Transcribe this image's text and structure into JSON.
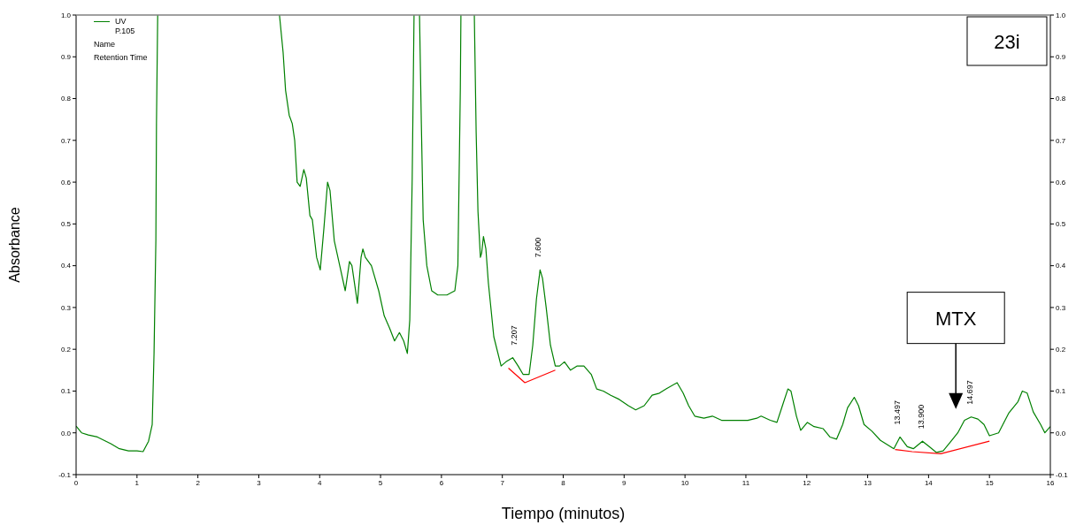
{
  "chart_data": {
    "type": "line",
    "xlabel": "Tiempo (minutos)",
    "ylabel": "Absorbance",
    "xlim": [
      0,
      16
    ],
    "xticks": [
      0,
      1,
      2,
      3,
      4,
      5,
      6,
      7,
      8,
      9,
      10,
      11,
      12,
      13,
      14,
      15,
      16
    ],
    "ylim": [
      -0.1,
      1
    ],
    "yticks": [
      {
        "value": -0.1,
        "label": "-0.1"
      },
      {
        "value": 0,
        "label": "0.0"
      },
      0.1,
      0.2,
      0.3,
      0.4,
      0.5,
      0.6,
      0.7,
      0.8,
      0.9,
      {
        "value": 1,
        "label": "1.0"
      }
    ],
    "y2lim": [
      -0.1,
      1
    ],
    "y2ticks": [
      {
        "value": -0.1,
        "label": "-0.1"
      },
      {
        "value": 0,
        "label": "0.0"
      },
      0.1,
      0.2,
      0.3,
      0.4,
      0.5,
      0.6,
      0.7,
      0.8,
      0.9,
      {
        "value": 1,
        "label": "1.0"
      }
    ],
    "legend": "top left",
    "grid": false,
    "marker": "none",
    "line_style": "solid",
    "series": [
      {
        "name": "UV P.105",
        "color": "#008000",
        "x": [
          0,
          0.09,
          0.2,
          0.35,
          0.57,
          0.71,
          0.86,
          1.0,
          1.1,
          1.19,
          1.25,
          1.28,
          1.31,
          1.32,
          1.34,
          2.3,
          3.34,
          3.4,
          3.44,
          3.5,
          3.55,
          3.59,
          3.63,
          3.68,
          3.74,
          3.78,
          3.84,
          3.88,
          3.95,
          4.01,
          4.07,
          4.13,
          4.17,
          4.24,
          4.33,
          4.42,
          4.49,
          4.53,
          4.62,
          4.68,
          4.71,
          4.75,
          4.85,
          4.97,
          5.06,
          5.15,
          5.23,
          5.31,
          5.38,
          5.44,
          5.48,
          5.52,
          5.55,
          5.6,
          5.64,
          5.67,
          5.7,
          5.76,
          5.84,
          5.94,
          6.09,
          6.22,
          6.27,
          6.31,
          6.32,
          6.43,
          6.54,
          6.57,
          6.6,
          6.64,
          6.66,
          6.69,
          6.73,
          6.77,
          6.86,
          6.98,
          7.06,
          7.17,
          7.26,
          7.34,
          7.44,
          7.5,
          7.56,
          7.62,
          7.66,
          7.72,
          7.79,
          7.87,
          7.94,
          8.02,
          8.12,
          8.23,
          8.34,
          8.46,
          8.55,
          8.66,
          8.78,
          8.92,
          9.07,
          9.19,
          9.33,
          9.46,
          9.58,
          9.69,
          9.87,
          9.97,
          10.06,
          10.16,
          10.31,
          10.45,
          10.6,
          10.74,
          10.89,
          11.03,
          11.18,
          11.25,
          11.4,
          11.51,
          11.6,
          11.69,
          11.74,
          11.83,
          11.9,
          12.01,
          12.12,
          12.27,
          12.38,
          12.49,
          12.59,
          12.67,
          12.78,
          12.85,
          12.94,
          13.07,
          13.21,
          13.43,
          13.53,
          13.65,
          13.75,
          13.9,
          14.01,
          14.13,
          14.24,
          14.37,
          14.48,
          14.59,
          14.7,
          14.81,
          14.91,
          15.0,
          15.15,
          15.32,
          15.47,
          15.54,
          15.62,
          15.72,
          15.84,
          15.91,
          16.0
        ],
        "values": [
          0.016,
          0.0,
          -0.005,
          -0.01,
          -0.026,
          -0.038,
          -0.043,
          -0.043,
          -0.045,
          -0.02,
          0.02,
          0.19,
          0.46,
          0.74,
          1.0,
          null,
          1.0,
          0.91,
          0.82,
          0.76,
          0.74,
          0.7,
          0.6,
          0.59,
          0.63,
          0.61,
          0.52,
          0.51,
          0.42,
          0.39,
          0.49,
          0.6,
          0.58,
          0.46,
          0.4,
          0.34,
          0.41,
          0.4,
          0.31,
          0.42,
          0.44,
          0.42,
          0.4,
          0.34,
          0.28,
          0.25,
          0.22,
          0.24,
          0.22,
          0.19,
          0.27,
          0.61,
          1.0,
          null,
          1.0,
          0.74,
          0.51,
          0.4,
          0.34,
          0.33,
          0.33,
          0.34,
          0.4,
          0.82,
          1.0,
          null,
          1.0,
          0.72,
          0.53,
          0.42,
          0.43,
          0.47,
          0.44,
          0.36,
          0.23,
          0.16,
          0.17,
          0.18,
          0.16,
          0.14,
          0.14,
          0.21,
          0.32,
          0.39,
          0.37,
          0.3,
          0.21,
          0.16,
          0.16,
          0.17,
          0.15,
          0.16,
          0.16,
          0.14,
          0.105,
          0.1,
          0.09,
          0.08,
          0.065,
          0.055,
          0.065,
          0.09,
          0.095,
          0.105,
          0.12,
          0.095,
          0.065,
          0.04,
          0.035,
          0.04,
          0.03,
          0.03,
          0.03,
          0.03,
          0.035,
          0.04,
          0.03,
          0.025,
          0.065,
          0.105,
          0.1,
          0.04,
          0.006,
          0.025,
          0.015,
          0.01,
          -0.01,
          -0.015,
          0.02,
          0.06,
          0.085,
          0.065,
          0.02,
          0.004,
          -0.018,
          -0.038,
          -0.01,
          -0.033,
          -0.038,
          -0.02,
          -0.033,
          -0.047,
          -0.043,
          -0.02,
          0.0,
          0.03,
          0.038,
          0.033,
          0.02,
          -0.007,
          0.0,
          0.048,
          0.075,
          0.1,
          0.095,
          0.05,
          0.02,
          0.0,
          0.015
        ]
      },
      {
        "color": "#ff0000",
        "x": [
          7.1,
          7.37,
          7.87,
          10,
          13.45,
          13.73,
          14.2,
          15.0
        ],
        "values": [
          0.155,
          0.12,
          0.15,
          null,
          -0.04,
          -0.045,
          -0.05,
          -0.02
        ]
      }
    ],
    "annotations": [
      "Name",
      "Retention Time",
      "23i",
      "MTX",
      {
        "text": "7.207",
        "x": 7.207,
        "y": 0.18
      },
      {
        "text": "7.600",
        "x": 7.6,
        "y": 0.39
      },
      {
        "text": "13.497",
        "x": 13.497,
        "y": -0.01
      },
      {
        "text": "13.900",
        "x": 13.9,
        "y": -0.02
      },
      {
        "text": "14.697",
        "x": 14.697,
        "y": 0.038
      }
    ]
  }
}
